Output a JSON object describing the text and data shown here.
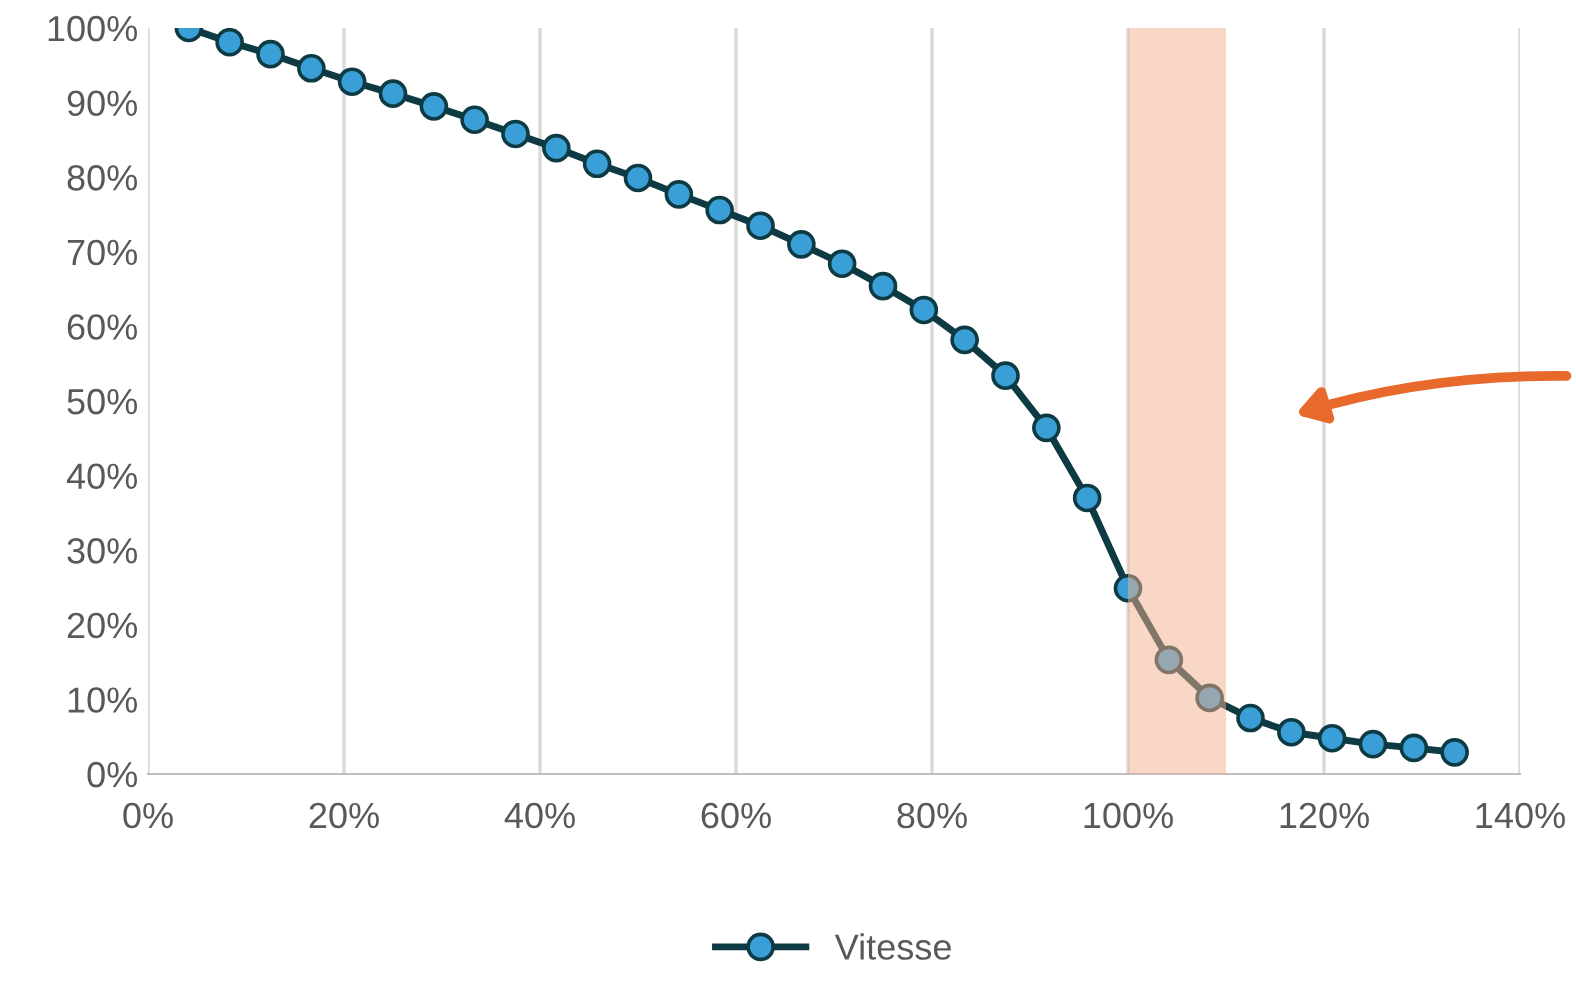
{
  "chart_data": {
    "type": "line",
    "x": [
      4.17,
      8.33,
      12.5,
      16.67,
      20.83,
      25,
      29.17,
      33.33,
      37.5,
      41.67,
      45.83,
      50,
      54.17,
      58.33,
      62.5,
      66.67,
      70.83,
      75,
      79.17,
      83.33,
      87.5,
      91.67,
      95.83,
      100,
      104.17,
      108.33,
      112.5,
      116.67,
      120.83,
      125,
      129.17,
      133.33
    ],
    "series": [
      {
        "name": "Vitesse",
        "color": "#0e3b43",
        "values": [
          100,
          98.1,
          96.5,
          94.6,
          92.8,
          91.2,
          89.5,
          87.7,
          85.8,
          83.9,
          81.8,
          79.9,
          77.7,
          75.6,
          73.5,
          71.0,
          68.4,
          65.4,
          62.2,
          58.2,
          53.4,
          46.4,
          37.0,
          24.9,
          15.3,
          10.2,
          7.5,
          5.6,
          4.8,
          4.0,
          3.5,
          2.9
        ]
      }
    ],
    "marker": "circle",
    "line_style": "solid",
    "xlim": [
      0,
      140
    ],
    "xticks": [
      {
        "value": 0,
        "label": "0%"
      },
      {
        "value": 20,
        "label": "20%"
      },
      {
        "value": 40,
        "label": "40%"
      },
      {
        "value": 60,
        "label": "60%"
      },
      {
        "value": 80,
        "label": "80%"
      },
      {
        "value": 100,
        "label": "100%"
      },
      {
        "value": 120,
        "label": "120%"
      },
      {
        "value": 140,
        "label": "140%"
      }
    ],
    "ylim": [
      0,
      100
    ],
    "yticks": [
      {
        "value": 0,
        "label": "0%"
      },
      {
        "value": 10,
        "label": "10%"
      },
      {
        "value": 20,
        "label": "20%"
      },
      {
        "value": 30,
        "label": "30%"
      },
      {
        "value": 40,
        "label": "40%"
      },
      {
        "value": 50,
        "label": "50%"
      },
      {
        "value": 60,
        "label": "60%"
      },
      {
        "value": 70,
        "label": "70%"
      },
      {
        "value": 80,
        "label": "80%"
      },
      {
        "value": 90,
        "label": "90%"
      },
      {
        "value": 100,
        "label": "100%"
      }
    ],
    "grid": "x",
    "legend": "bottom",
    "bands": [
      {
        "axis": "x",
        "from": 100,
        "to": 110,
        "color": "#f4b08e"
      }
    ]
  }
}
